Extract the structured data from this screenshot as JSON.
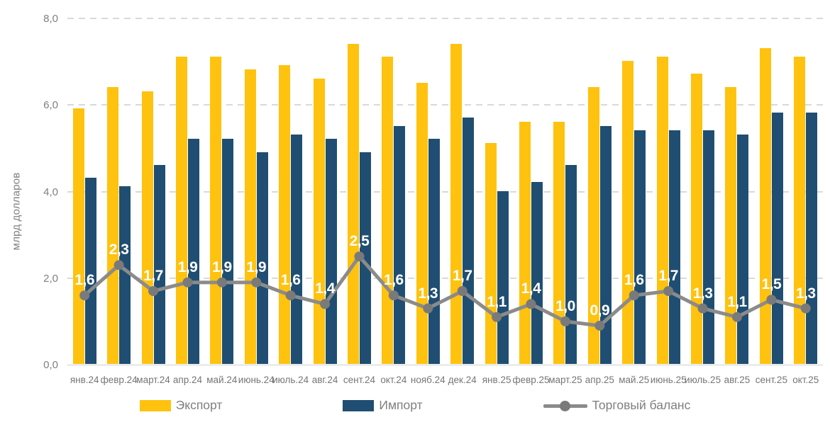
{
  "chart_data": {
    "type": "bar",
    "title": "",
    "xlabel": "",
    "ylabel": "млрд долларов",
    "ylim": [
      0,
      8
    ],
    "grid": "dashed-horizontal",
    "legend_position": "bottom",
    "yticks": [
      {
        "value": 0,
        "label": "0,0"
      },
      {
        "value": 2,
        "label": "2,0"
      },
      {
        "value": 4,
        "label": "4,0"
      },
      {
        "value": 6,
        "label": "6,0"
      },
      {
        "value": 8,
        "label": "8,0"
      }
    ],
    "categories": [
      "янв.24",
      "февр.24",
      "март.24",
      "апр.24",
      "май.24",
      "июнь.24",
      "июль.24",
      "авг.24",
      "сент.24",
      "окт.24",
      "нояб.24",
      "дек.24",
      "янв.25",
      "февр.25",
      "март.25",
      "апр.25",
      "май.25",
      "июнь.25",
      "июль.25",
      "авг.25",
      "сент.25",
      "окт.25"
    ],
    "series": [
      {
        "name": "Экспорт",
        "type": "bar",
        "color": "#FFC20E",
        "values": [
          5.9,
          6.4,
          6.3,
          7.1,
          7.1,
          6.8,
          6.9,
          6.6,
          7.4,
          7.1,
          6.5,
          7.4,
          5.1,
          5.6,
          5.6,
          6.4,
          7.0,
          7.1,
          6.7,
          6.4,
          7.3,
          7.1
        ]
      },
      {
        "name": "Импорт",
        "type": "bar",
        "color": "#1F4E72",
        "values": [
          4.3,
          4.1,
          4.6,
          5.2,
          5.2,
          4.9,
          5.3,
          5.2,
          4.9,
          5.5,
          5.2,
          5.7,
          4.0,
          4.2,
          4.6,
          5.5,
          5.4,
          5.4,
          5.4,
          5.3,
          5.8,
          5.8
        ]
      },
      {
        "name": "Торговый баланс",
        "type": "line",
        "color": "#8b8b8b",
        "marker_color": "#7a7a7a",
        "values": [
          1.6,
          2.3,
          1.7,
          1.9,
          1.9,
          1.9,
          1.6,
          1.4,
          2.5,
          1.6,
          1.3,
          1.7,
          1.1,
          1.4,
          1.0,
          0.9,
          1.6,
          1.7,
          1.3,
          1.1,
          1.5,
          1.3
        ],
        "labels": [
          "1,6",
          "2,3",
          "1,7",
          "1,9",
          "1,9",
          "1,9",
          "1,6",
          "1,4",
          "2,5",
          "1,6",
          "1,3",
          "1,7",
          "1,1",
          "1,4",
          "1,0",
          "0,9",
          "1,6",
          "1,7",
          "1,3",
          "1,1",
          "1,5",
          "1,3"
        ]
      }
    ]
  },
  "colors": {
    "background": "#ffffff",
    "gridline": "#d9d9d9",
    "axis_text": "#7f7f7f",
    "data_label_text": "#ffffff"
  }
}
